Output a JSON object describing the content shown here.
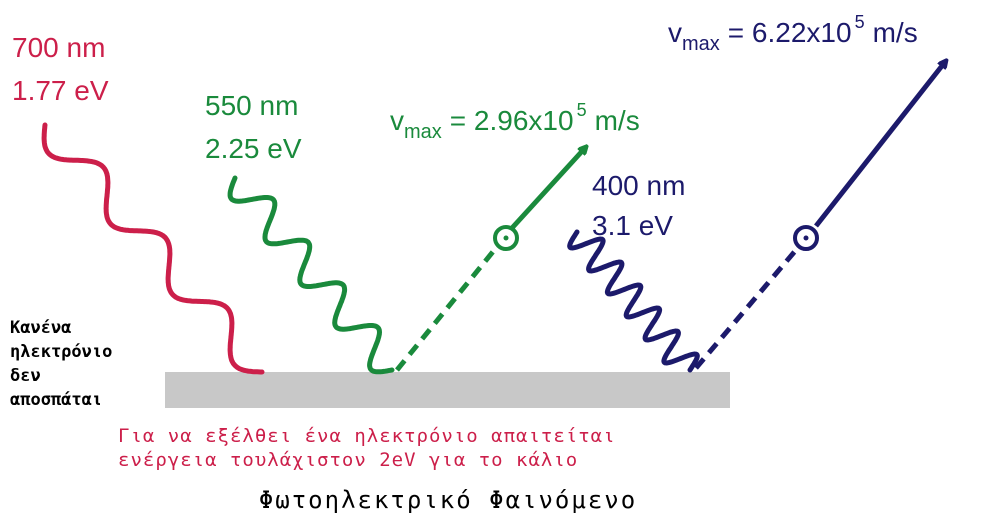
{
  "photons": [
    {
      "wavelength": "700 nm",
      "energy": "1.77 eV"
    },
    {
      "wavelength": "550 nm",
      "energy": "2.25 eV"
    },
    {
      "wavelength": "400 nm",
      "energy": "3.1 eV"
    }
  ],
  "velocities": [
    {
      "symbol": "v",
      "subscript": "max",
      "text": "= 2.96x10",
      "exponent": "5",
      "unit": "m/s"
    },
    {
      "symbol": "v",
      "subscript": "max",
      "text": "= 6.22x10",
      "exponent": "5",
      "unit": "m/s"
    }
  ],
  "note": [
    "Κανένα",
    "ηλεκτρόνιο",
    "δεν",
    "αποσπάται"
  ],
  "caption": [
    "Για να εξέλθει ένα ηλεκτρόνιο απαιτείται",
    "ενέργεια τουλάχιστον 2eV για το κάλιο"
  ],
  "title": "Φωτοηλεκτρικό Φαινόμενο"
}
